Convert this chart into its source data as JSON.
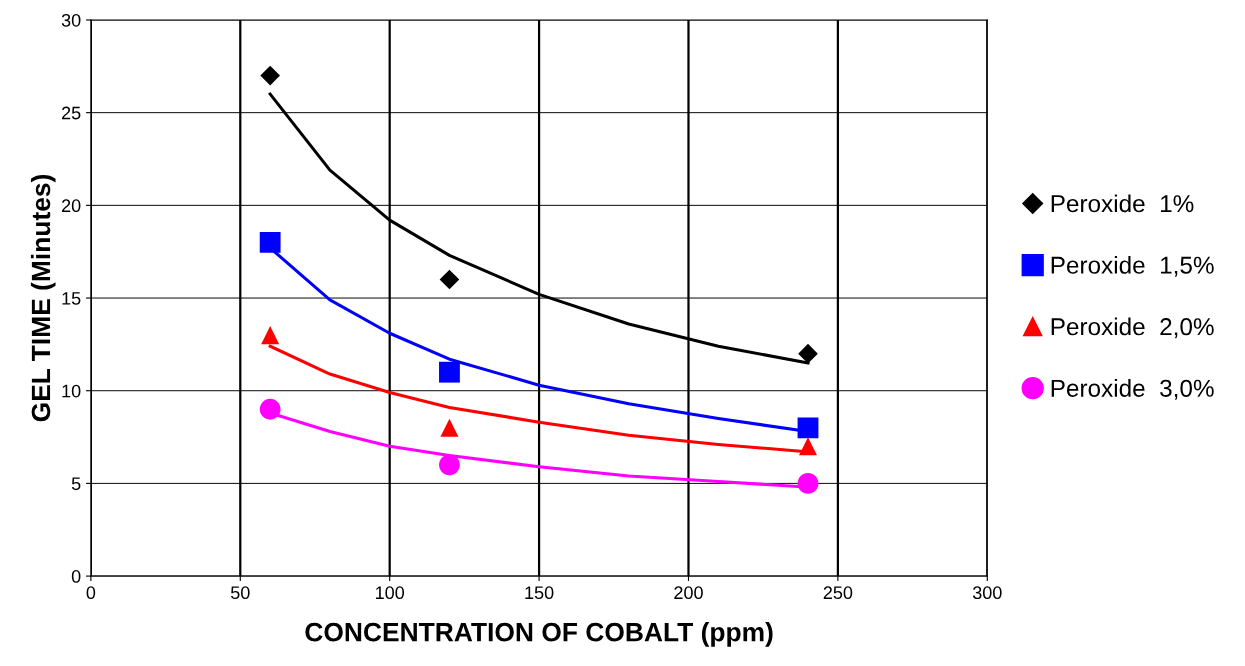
{
  "chart_data": {
    "type": "scatter",
    "xlabel": "CONCENTRATION OF COBALT (ppm)",
    "ylabel": "GEL TIME (Minutes)",
    "xlim": [
      0,
      300
    ],
    "xticks": [
      0,
      50,
      100,
      150,
      200,
      250,
      300
    ],
    "ylim": [
      0,
      30
    ],
    "yticks": [
      0,
      5,
      10,
      15,
      20,
      25,
      30
    ],
    "grid": true,
    "legend": "right",
    "series": [
      {
        "name": "Peroxide  1%",
        "color": "#000000",
        "marker": "diamond",
        "x": [
          60,
          120,
          240
        ],
        "values": [
          27,
          16,
          12
        ]
      },
      {
        "name": "Peroxide  1,5%",
        "color": "#0000ff",
        "marker": "square",
        "x": [
          60,
          120,
          240
        ],
        "values": [
          18,
          11,
          8
        ]
      },
      {
        "name": "Peroxide  2,0%",
        "color": "#ff0000",
        "marker": "triangle",
        "x": [
          60,
          120,
          240
        ],
        "values": [
          13,
          8,
          7
        ]
      },
      {
        "name": "Peroxide  3,0%",
        "color": "#ff00ff",
        "marker": "circle",
        "x": [
          60,
          120,
          240
        ],
        "values": [
          9,
          6,
          5
        ]
      },
      {
        "type": "line",
        "color": "#000000",
        "x": [
          60,
          80,
          100,
          120,
          150,
          180,
          210,
          240
        ],
        "values": [
          26.0,
          21.9,
          19.2,
          17.3,
          15.2,
          13.6,
          12.4,
          11.5
        ]
      },
      {
        "type": "line",
        "color": "#0000ff",
        "x": [
          60,
          80,
          100,
          120,
          150,
          180,
          210,
          240
        ],
        "values": [
          17.7,
          14.9,
          13.1,
          11.7,
          10.3,
          9.3,
          8.5,
          7.8
        ]
      },
      {
        "type": "line",
        "color": "#ff0000",
        "x": [
          60,
          80,
          100,
          120,
          150,
          180,
          210,
          240
        ],
        "values": [
          12.4,
          10.9,
          9.9,
          9.1,
          8.3,
          7.6,
          7.1,
          6.7
        ]
      },
      {
        "type": "line",
        "color": "#ff00ff",
        "x": [
          60,
          80,
          100,
          120,
          150,
          180,
          210,
          240
        ],
        "values": [
          8.8,
          7.8,
          7.0,
          6.5,
          5.9,
          5.4,
          5.1,
          4.8
        ]
      }
    ]
  }
}
